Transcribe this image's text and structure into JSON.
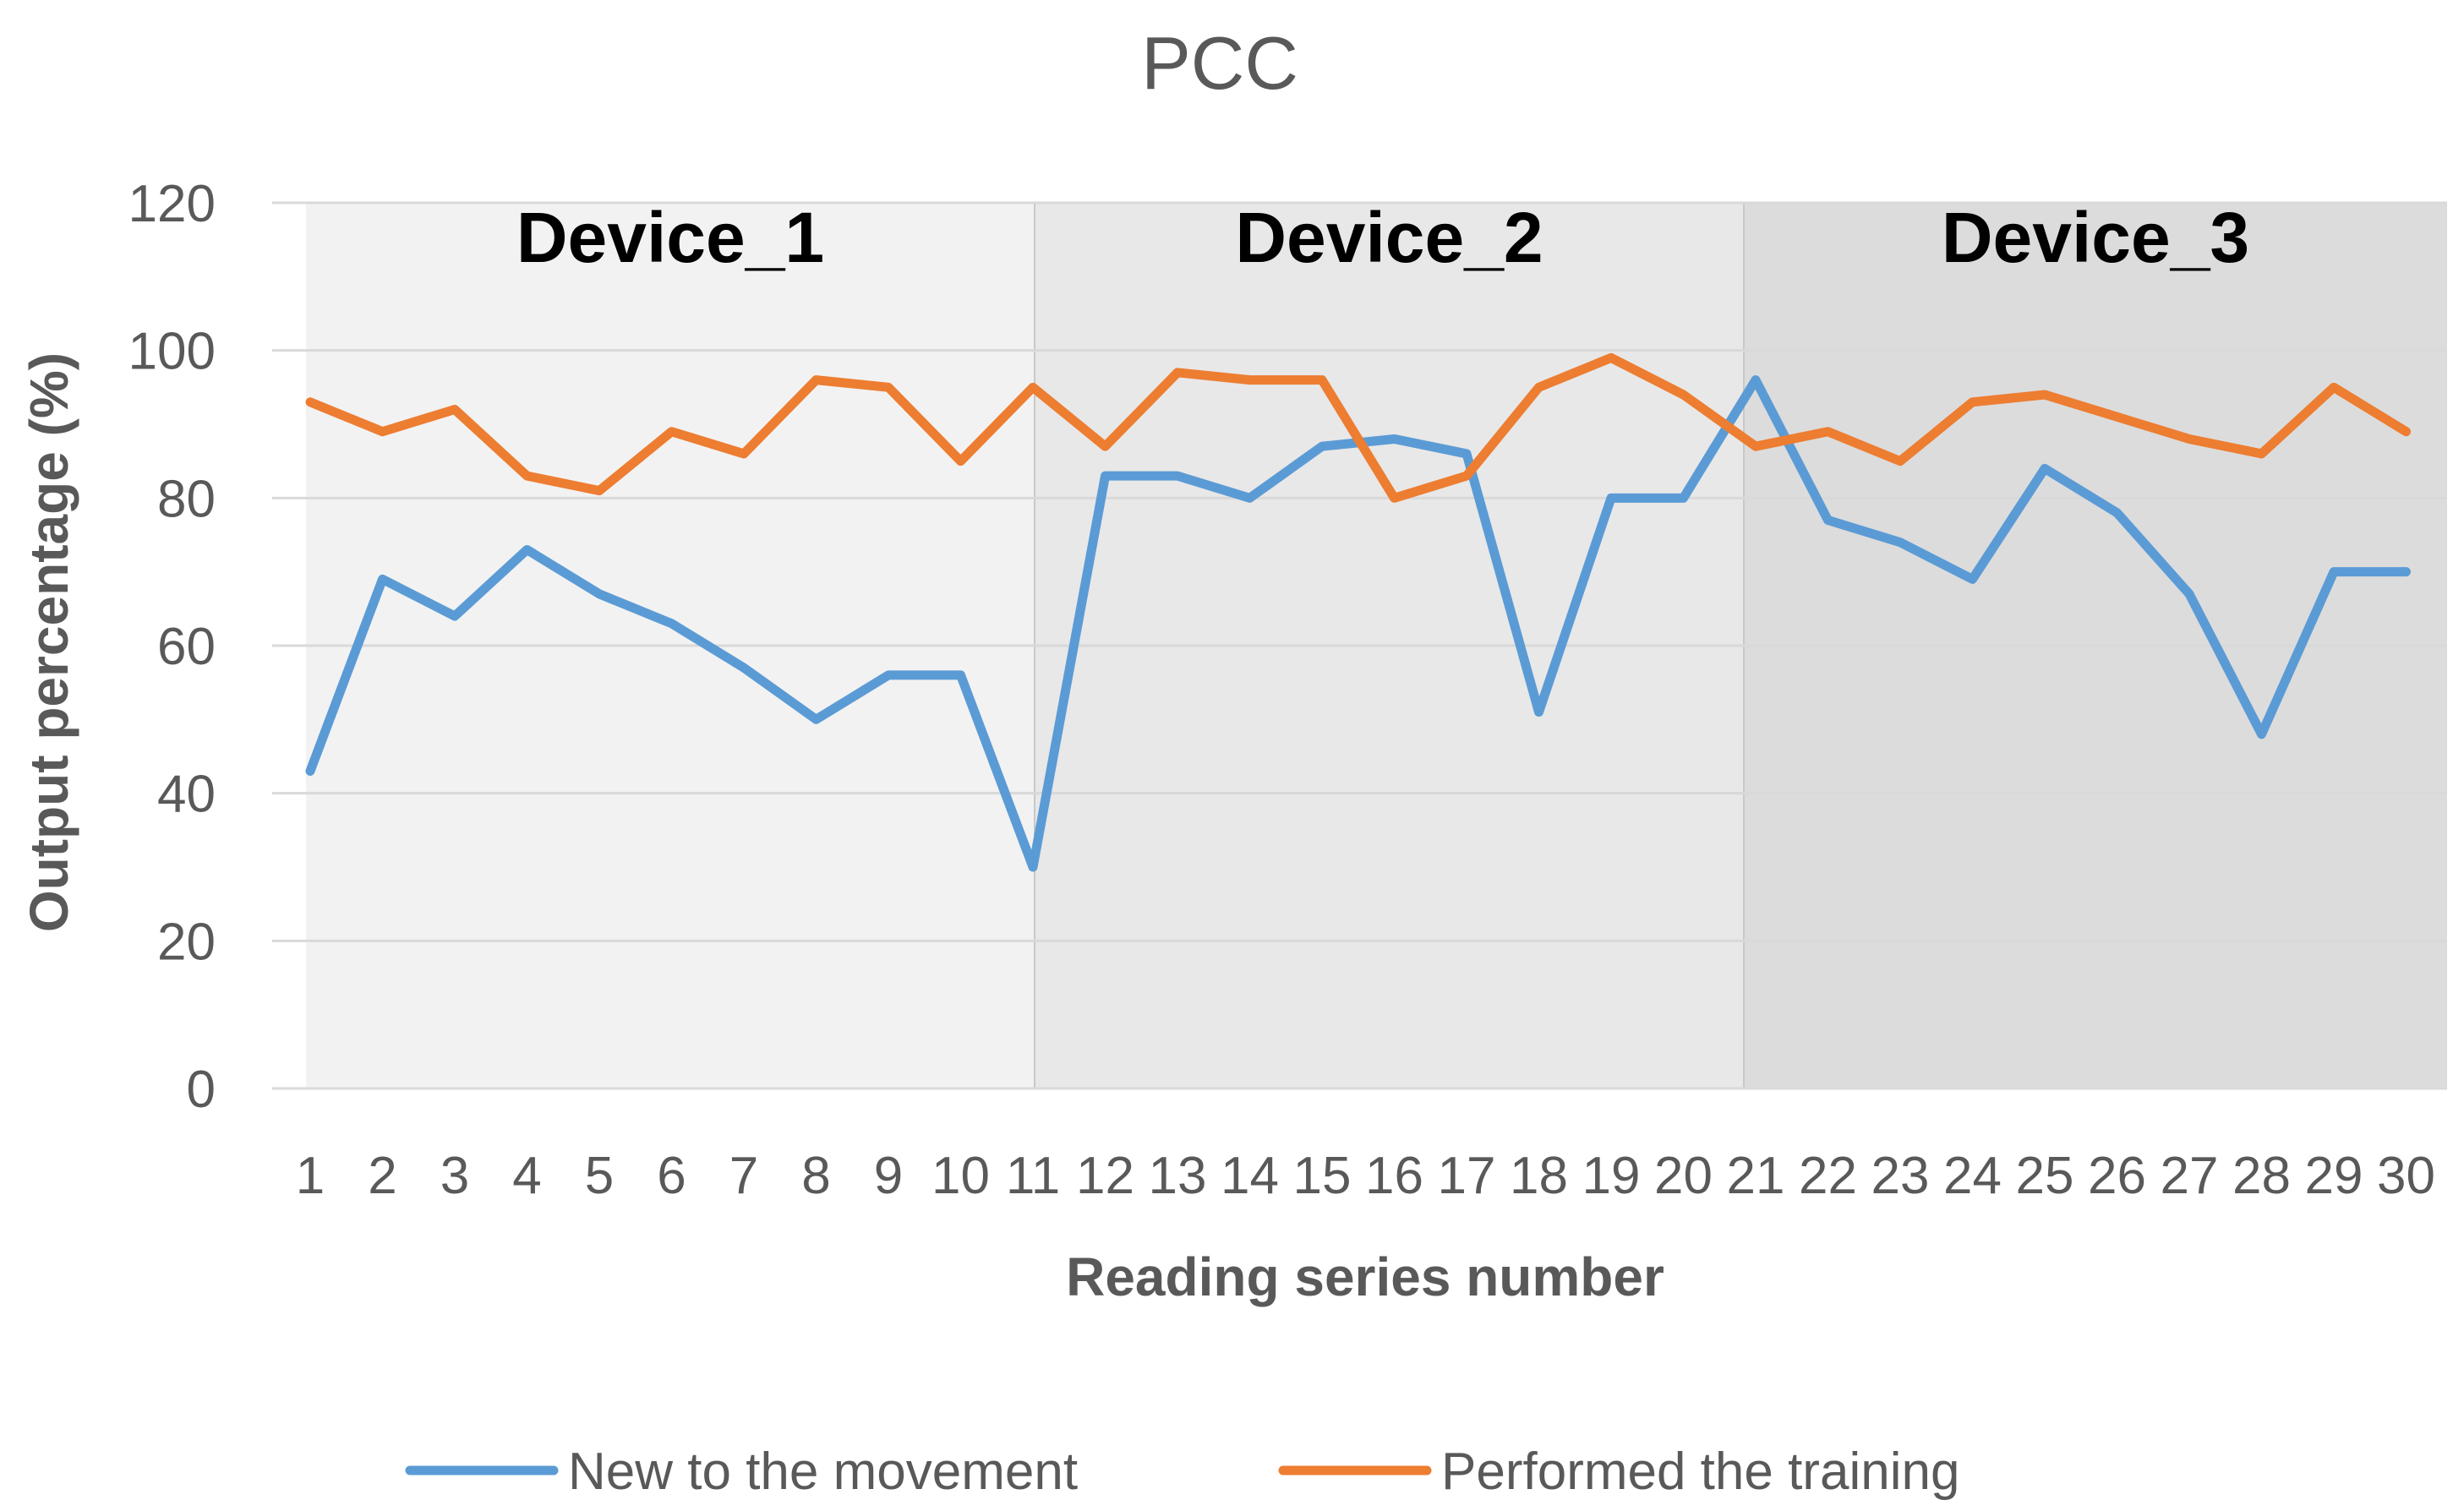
{
  "chart_data": {
    "type": "line",
    "title": "PCC",
    "xlabel": "Reading series number",
    "ylabel": "Output percentage (%)",
    "ylim": [
      0,
      120
    ],
    "yticks": [
      0,
      20,
      40,
      60,
      80,
      100,
      120
    ],
    "x": [
      1,
      2,
      3,
      4,
      5,
      6,
      7,
      8,
      9,
      10,
      11,
      12,
      13,
      14,
      15,
      16,
      17,
      18,
      19,
      20,
      21,
      22,
      23,
      24,
      25,
      26,
      27,
      28,
      29,
      30
    ],
    "x_tick_labels": [
      "1",
      "2",
      "3",
      "4",
      "5",
      "6",
      "7",
      "8",
      "9",
      "10",
      "11",
      "12",
      "13",
      "14",
      "15",
      "16",
      "17",
      "18",
      "19",
      "20",
      "21",
      "22",
      "23",
      "24",
      "25",
      "26",
      "27",
      "28",
      "29",
      "30"
    ],
    "grid": true,
    "legend_position": "bottom",
    "regions": [
      {
        "label": "Device_1",
        "x_start": 1,
        "x_end": 11,
        "color": "#f2f2f2"
      },
      {
        "label": "Device_2",
        "x_start": 11,
        "x_end": 21,
        "color": "#e8e8e8"
      },
      {
        "label": "Device_3",
        "x_start": 21,
        "x_end": 30,
        "color": "#dcdcdc"
      }
    ],
    "series": [
      {
        "name": "New to the movement",
        "color": "#5b9bd5",
        "values": [
          43,
          69,
          64,
          73,
          67,
          63,
          57,
          50,
          56,
          56,
          30,
          83,
          83,
          80,
          87,
          88,
          86,
          51,
          80,
          80,
          96,
          77,
          74,
          69,
          84,
          78,
          67,
          48,
          70,
          70
        ]
      },
      {
        "name": "Performed the training",
        "color": "#ed7d31",
        "values": [
          93,
          89,
          92,
          83,
          81,
          89,
          86,
          96,
          95,
          85,
          95,
          87,
          97,
          96,
          96,
          80,
          83,
          95,
          99,
          94,
          87,
          89,
          85,
          93,
          94,
          91,
          88,
          86,
          95,
          89
        ]
      }
    ]
  }
}
